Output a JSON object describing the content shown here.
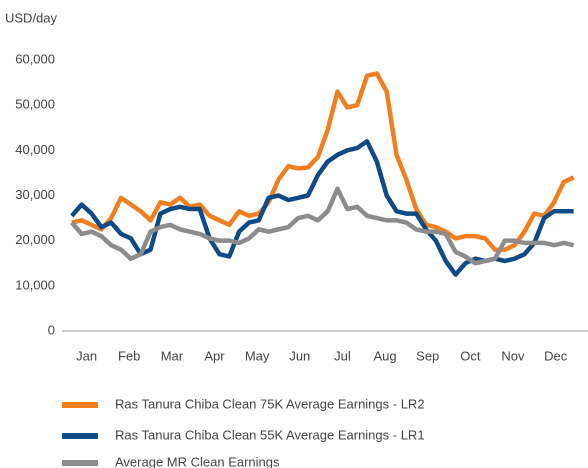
{
  "chart_data": {
    "type": "line",
    "ylabel": "USD/day",
    "x": [
      1,
      2,
      3,
      4,
      5,
      6,
      7,
      8,
      9,
      10,
      11,
      12,
      13,
      14,
      15,
      16,
      17,
      18,
      19,
      20,
      21,
      22,
      23,
      24,
      25,
      26,
      27,
      28,
      29,
      30,
      31,
      32,
      33,
      34,
      35,
      36,
      37,
      38,
      39,
      40,
      41,
      42,
      43,
      44,
      45,
      46,
      47,
      48,
      49,
      50,
      51,
      52
    ],
    "xlim": [
      0,
      53
    ],
    "xticks": [
      {
        "value": 2.5,
        "label": "Jan"
      },
      {
        "value": 6.83,
        "label": "Feb"
      },
      {
        "value": 11.17,
        "label": "Mar"
      },
      {
        "value": 15.5,
        "label": "Apr"
      },
      {
        "value": 19.83,
        "label": "May"
      },
      {
        "value": 24.17,
        "label": "Jun"
      },
      {
        "value": 28.5,
        "label": "Jul"
      },
      {
        "value": 32.83,
        "label": "Aug"
      },
      {
        "value": 37.17,
        "label": "Sep"
      },
      {
        "value": 41.5,
        "label": "Oct"
      },
      {
        "value": 45.83,
        "label": "Nov"
      },
      {
        "value": 50.17,
        "label": "Dec"
      }
    ],
    "ylim": [
      0,
      60000
    ],
    "yticks": [
      0,
      {
        "value": 10000,
        "label": "10,000"
      },
      {
        "value": 20000,
        "label": "20,000"
      },
      {
        "value": 30000,
        "label": "30,000"
      },
      {
        "value": 40000,
        "label": "40,000"
      },
      {
        "value": 50000,
        "label": "50,000"
      },
      {
        "value": 60000,
        "label": "60,000"
      }
    ],
    "grid": false,
    "legend": "bottom",
    "series": [
      {
        "name": "Ras Tanura Chiba Clean 75K Average Earnings - LR2",
        "color": "#f07f1f",
        "values": [
          24000,
          24500,
          23500,
          22500,
          25000,
          29500,
          28000,
          26500,
          24500,
          28500,
          28000,
          29500,
          27500,
          28000,
          25500,
          24500,
          23500,
          26500,
          25500,
          26000,
          28500,
          33500,
          36500,
          36000,
          36200,
          38500,
          44500,
          53000,
          49500,
          50000,
          56500,
          57000,
          53000,
          39000,
          33500,
          27000,
          23500,
          23000,
          22000,
          20500,
          21000,
          21000,
          20500,
          18000,
          18000,
          19000,
          22000,
          26000,
          25500,
          28500,
          33000,
          34000
        ]
      },
      {
        "name": "Ras Tanura Chiba Clean 55K Average Earnings - LR1",
        "color": "#0d4a86",
        "values": [
          25500,
          28000,
          26000,
          23000,
          24000,
          21500,
          20500,
          17000,
          18000,
          26000,
          27000,
          27500,
          27000,
          27000,
          20500,
          17000,
          16500,
          22000,
          24000,
          24500,
          29500,
          30000,
          29000,
          29500,
          30000,
          34500,
          37500,
          39000,
          40000,
          40500,
          42000,
          37500,
          30000,
          26500,
          26000,
          26000,
          22500,
          20000,
          15500,
          12500,
          15000,
          16000,
          15500,
          16000,
          15500,
          16000,
          17000,
          19500,
          25000,
          26500,
          26500,
          26500
        ]
      },
      {
        "name": "Average MR Clean Earnings",
        "color": "#8c8c8c",
        "values": [
          24000,
          21500,
          22000,
          21000,
          19000,
          18000,
          16000,
          17000,
          22000,
          23000,
          23500,
          22500,
          22000,
          21500,
          20500,
          20000,
          20000,
          19500,
          20500,
          22500,
          22000,
          22500,
          23000,
          25000,
          25500,
          24500,
          26500,
          31500,
          27000,
          27500,
          25500,
          25000,
          24500,
          24500,
          24000,
          22500,
          22000,
          22000,
          21500,
          17500,
          16500,
          15000,
          15500,
          16000,
          20000,
          20000,
          19500,
          19500,
          19500,
          19000,
          19500,
          19000
        ]
      }
    ]
  }
}
